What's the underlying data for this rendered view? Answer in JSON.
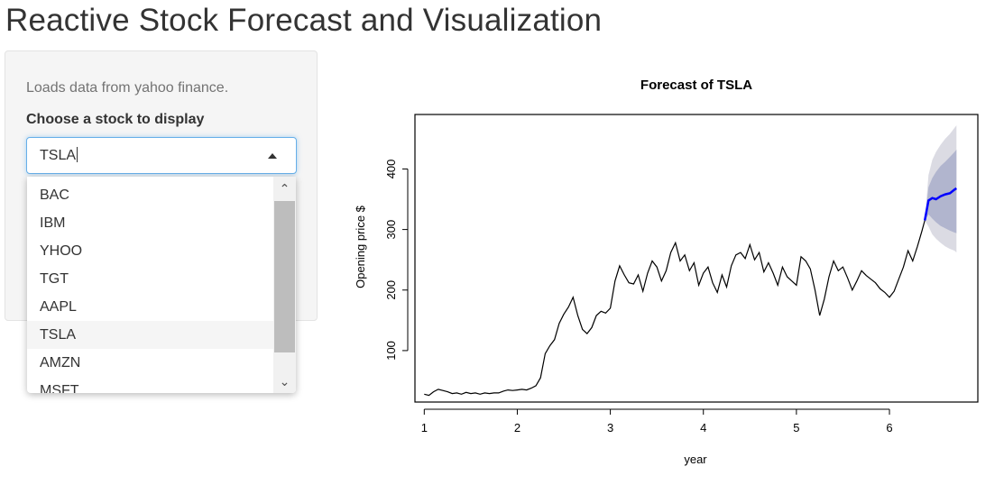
{
  "app": {
    "title": "Reactive Stock Forecast and Visualization"
  },
  "sidebar": {
    "help_text": "Loads data from yahoo finance.",
    "select_label": "Choose a stock to display",
    "selected_value": "TSLA",
    "options": [
      "BAC",
      "IBM",
      "YHOO",
      "TGT",
      "AAPL",
      "TSLA",
      "AMZN",
      "MSFT"
    ],
    "highlighted_option": "TSLA"
  },
  "colors": {
    "forecast_line": "#0000ff",
    "ci80_band": "#b1b5ce",
    "ci95_band": "#dbdbe3",
    "history_line": "#000000"
  },
  "chart_data": {
    "type": "line",
    "title": "Forecast of  TSLA",
    "xlabel": "year",
    "ylabel": "Opening price $",
    "xlim": [
      0.9,
      6.95
    ],
    "ylim": [
      15,
      490
    ],
    "xticks": [
      1,
      2,
      3,
      4,
      5,
      6
    ],
    "yticks": [
      100,
      200,
      300,
      400
    ],
    "grid": false,
    "series": [
      {
        "name": "history",
        "x": [
          1.0,
          1.05,
          1.1,
          1.15,
          1.2,
          1.25,
          1.3,
          1.35,
          1.4,
          1.45,
          1.5,
          1.55,
          1.6,
          1.65,
          1.7,
          1.75,
          1.8,
          1.85,
          1.9,
          1.95,
          2.0,
          2.05,
          2.1,
          2.15,
          2.2,
          2.25,
          2.3,
          2.35,
          2.4,
          2.45,
          2.5,
          2.55,
          2.6,
          2.65,
          2.7,
          2.75,
          2.8,
          2.85,
          2.9,
          2.95,
          3.0,
          3.05,
          3.1,
          3.15,
          3.2,
          3.25,
          3.3,
          3.35,
          3.4,
          3.45,
          3.5,
          3.55,
          3.6,
          3.65,
          3.7,
          3.75,
          3.8,
          3.85,
          3.9,
          3.95,
          4.0,
          4.05,
          4.1,
          4.15,
          4.2,
          4.25,
          4.3,
          4.35,
          4.4,
          4.45,
          4.5,
          4.55,
          4.6,
          4.65,
          4.7,
          4.75,
          4.8,
          4.85,
          4.9,
          4.95,
          5.0,
          5.05,
          5.1,
          5.15,
          5.2,
          5.25,
          5.3,
          5.35,
          5.4,
          5.45,
          5.5,
          5.55,
          5.6,
          5.65,
          5.7,
          5.75,
          5.8,
          5.85,
          5.9,
          5.95,
          6.0,
          6.05,
          6.1,
          6.15,
          6.2,
          6.25,
          6.3,
          6.35,
          6.38
        ],
        "y": [
          28,
          26,
          32,
          36,
          34,
          32,
          29,
          30,
          28,
          31,
          29,
          30,
          28,
          30,
          29,
          30,
          30,
          33,
          35,
          34,
          35,
          36,
          35,
          38,
          42,
          55,
          95,
          108,
          118,
          145,
          160,
          172,
          188,
          158,
          135,
          128,
          138,
          158,
          165,
          162,
          170,
          215,
          240,
          225,
          212,
          210,
          225,
          198,
          228,
          248,
          238,
          215,
          232,
          262,
          278,
          248,
          258,
          232,
          245,
          208,
          228,
          238,
          212,
          196,
          225,
          205,
          240,
          258,
          262,
          252,
          275,
          250,
          262,
          230,
          245,
          228,
          208,
          238,
          222,
          215,
          208,
          255,
          248,
          235,
          200,
          158,
          185,
          222,
          248,
          232,
          238,
          220,
          200,
          215,
          232,
          224,
          218,
          212,
          202,
          196,
          188,
          198,
          218,
          238,
          265,
          248,
          272,
          298,
          315
        ]
      },
      {
        "name": "forecast",
        "x": [
          6.38,
          6.42,
          6.46,
          6.5,
          6.55,
          6.6,
          6.65,
          6.7,
          6.72
        ],
        "y": [
          315,
          348,
          352,
          350,
          355,
          358,
          360,
          366,
          368
        ]
      },
      {
        "name": "80% interval",
        "x": [
          6.38,
          6.42,
          6.46,
          6.5,
          6.55,
          6.6,
          6.65,
          6.7,
          6.72
        ],
        "upper": [
          315,
          370,
          385,
          395,
          405,
          412,
          420,
          428,
          432
        ],
        "lower": [
          315,
          325,
          318,
          312,
          306,
          302,
          298,
          295,
          294
        ]
      },
      {
        "name": "95% interval",
        "x": [
          6.38,
          6.42,
          6.46,
          6.5,
          6.55,
          6.6,
          6.65,
          6.7,
          6.72
        ],
        "upper": [
          315,
          390,
          415,
          428,
          440,
          450,
          458,
          468,
          472
        ],
        "lower": [
          315,
          305,
          292,
          285,
          278,
          272,
          268,
          265,
          262
        ]
      }
    ]
  }
}
